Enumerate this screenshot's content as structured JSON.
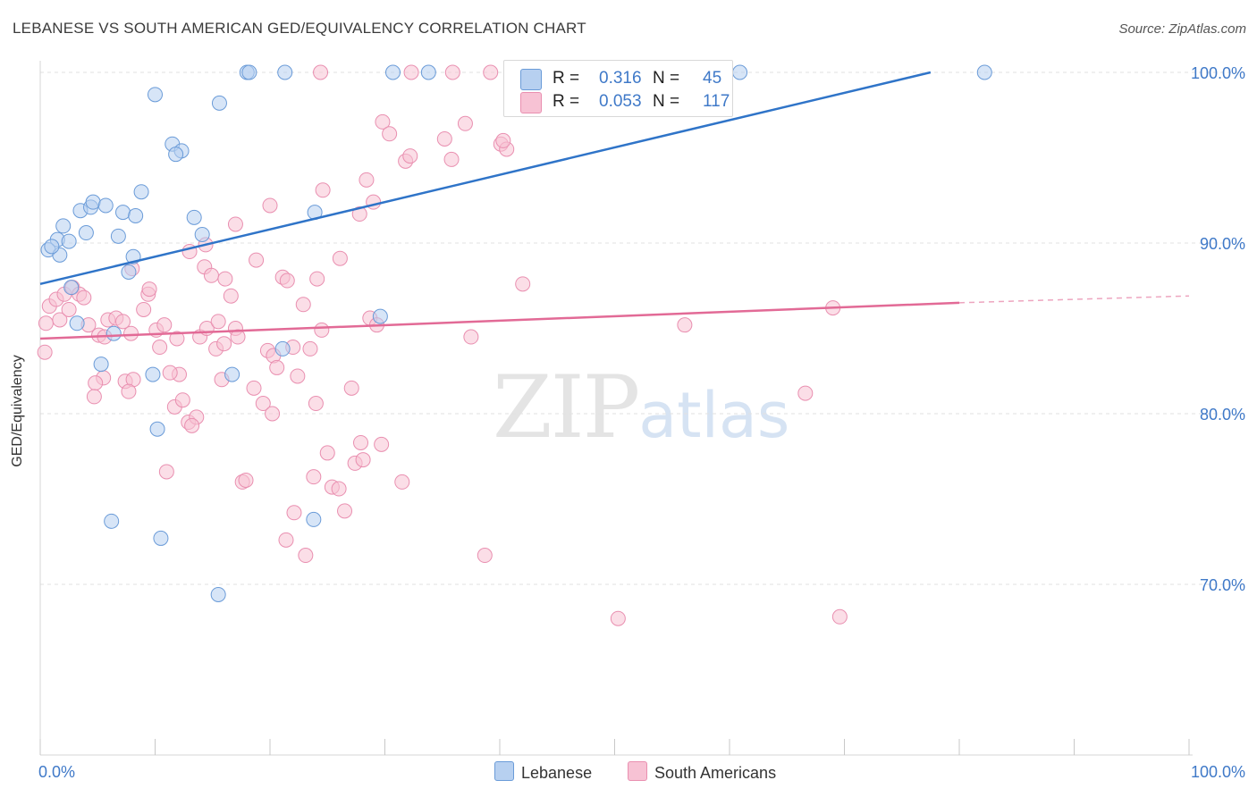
{
  "title": "LEBANESE VS SOUTH AMERICAN GED/EQUIVALENCY CORRELATION CHART",
  "source": "Source: ZipAtlas.com",
  "watermark": {
    "zip": "ZIP",
    "atlas": "atlas"
  },
  "legend_box": {
    "rows": [
      {
        "r_label": "R =",
        "r_value": "0.316",
        "n_label": "N =",
        "n_value": "45",
        "color": "#b7d0f0"
      },
      {
        "r_label": "R =",
        "r_value": "0.053",
        "n_label": "N =",
        "n_value": "117",
        "color": "#f7c2d4"
      }
    ]
  },
  "bottom_legend": {
    "lebanese": "Lebanese",
    "south_americans": "South Americans"
  },
  "colors": {
    "lebanese_fill": "#b7d0f0",
    "lebanese_stroke": "#6a9bd8",
    "lebanese_line": "#2f74c8",
    "south_fill": "#f7c2d4",
    "south_stroke": "#e98fb0",
    "south_line": "#e26a96",
    "axis_text": "#3f79c8"
  },
  "chart_data": {
    "type": "scatter",
    "title": "LEBANESE VS SOUTH AMERICAN GED/EQUIVALENCY CORRELATION CHART",
    "xlabel": "",
    "ylabel": "GED/Equivalency",
    "xlim": [
      0,
      100
    ],
    "ylim": [
      60,
      102
    ],
    "x_tick_labels": [
      "0.0%",
      "100.0%"
    ],
    "y_ticks": [
      70,
      80,
      90,
      100
    ],
    "y_tick_labels": [
      "70.0%",
      "80.0%",
      "90.0%",
      "100.0%"
    ],
    "grid": "horizontal dashed",
    "legend": "top-center",
    "series": [
      {
        "name": "Lebanese",
        "r": 0.316,
        "n": 45,
        "trend": {
          "x": [
            0,
            77.5
          ],
          "y": [
            87.6,
            100.0
          ]
        },
        "points": [
          [
            1.5,
            90.2
          ],
          [
            0.7,
            89.6
          ],
          [
            2.0,
            91.0
          ],
          [
            3.5,
            91.9
          ],
          [
            4.4,
            92.1
          ],
          [
            4.6,
            92.4
          ],
          [
            5.7,
            92.2
          ],
          [
            7.2,
            91.8
          ],
          [
            8.3,
            91.6
          ],
          [
            8.8,
            93.0
          ],
          [
            4.0,
            90.6
          ],
          [
            6.8,
            90.4
          ],
          [
            8.1,
            89.2
          ],
          [
            7.7,
            88.3
          ],
          [
            2.7,
            87.4
          ],
          [
            3.2,
            85.3
          ],
          [
            6.4,
            84.7
          ],
          [
            5.3,
            82.9
          ],
          [
            9.8,
            82.3
          ],
          [
            10.2,
            79.1
          ],
          [
            6.2,
            73.7
          ],
          [
            10.5,
            72.7
          ],
          [
            11.5,
            95.8
          ],
          [
            12.3,
            95.4
          ],
          [
            11.8,
            95.2
          ],
          [
            13.4,
            91.5
          ],
          [
            14.1,
            90.5
          ],
          [
            15.6,
            98.2
          ],
          [
            10.0,
            98.7
          ],
          [
            18.0,
            100.0
          ],
          [
            18.2,
            100.0
          ],
          [
            21.3,
            100.0
          ],
          [
            30.7,
            100.0
          ],
          [
            33.8,
            100.0
          ],
          [
            60.9,
            100.0
          ],
          [
            82.2,
            100.0
          ],
          [
            23.9,
            91.8
          ],
          [
            16.7,
            82.3
          ],
          [
            21.1,
            83.8
          ],
          [
            23.8,
            73.8
          ],
          [
            15.5,
            69.4
          ],
          [
            29.6,
            85.7
          ],
          [
            1.7,
            89.3
          ],
          [
            2.5,
            90.1
          ],
          [
            1.0,
            89.8
          ]
        ]
      },
      {
        "name": "South Americans",
        "r": 0.053,
        "n": 117,
        "trend": {
          "x": [
            0,
            80
          ],
          "y": [
            84.4,
            86.5
          ],
          "dashed_to_x": 100,
          "dashed_to_y": 86.9
        },
        "points": [
          [
            0.4,
            83.6
          ],
          [
            0.5,
            85.3
          ],
          [
            0.8,
            86.3
          ],
          [
            1.4,
            86.7
          ],
          [
            1.7,
            85.5
          ],
          [
            2.1,
            87.0
          ],
          [
            2.5,
            86.1
          ],
          [
            2.8,
            87.4
          ],
          [
            3.4,
            87.0
          ],
          [
            3.8,
            86.8
          ],
          [
            4.2,
            85.2
          ],
          [
            5.1,
            84.6
          ],
          [
            5.6,
            84.5
          ],
          [
            5.5,
            82.1
          ],
          [
            5.9,
            85.5
          ],
          [
            6.6,
            85.6
          ],
          [
            7.2,
            85.4
          ],
          [
            7.9,
            84.7
          ],
          [
            4.8,
            81.8
          ],
          [
            4.7,
            81.0
          ],
          [
            7.4,
            81.9
          ],
          [
            8.1,
            82.0
          ],
          [
            7.7,
            81.3
          ],
          [
            9.0,
            86.1
          ],
          [
            9.4,
            87.0
          ],
          [
            9.5,
            87.3
          ],
          [
            10.1,
            84.9
          ],
          [
            10.4,
            83.9
          ],
          [
            10.8,
            85.2
          ],
          [
            11.9,
            84.4
          ],
          [
            12.1,
            82.3
          ],
          [
            11.3,
            82.4
          ],
          [
            11.7,
            80.4
          ],
          [
            12.4,
            80.8
          ],
          [
            12.9,
            79.5
          ],
          [
            13.6,
            79.8
          ],
          [
            13.2,
            79.3
          ],
          [
            11.0,
            76.6
          ],
          [
            13.9,
            84.5
          ],
          [
            14.5,
            85.0
          ],
          [
            15.5,
            85.4
          ],
          [
            15.3,
            83.8
          ],
          [
            16.0,
            84.1
          ],
          [
            15.8,
            82.0
          ],
          [
            16.6,
            86.9
          ],
          [
            17.0,
            85.0
          ],
          [
            17.2,
            84.5
          ],
          [
            14.3,
            88.6
          ],
          [
            14.9,
            88.1
          ],
          [
            16.1,
            87.9
          ],
          [
            14.4,
            89.9
          ],
          [
            13.0,
            89.5
          ],
          [
            8.0,
            88.5
          ],
          [
            17.6,
            76.0
          ],
          [
            17.9,
            76.1
          ],
          [
            18.6,
            81.5
          ],
          [
            19.4,
            80.6
          ],
          [
            19.8,
            83.7
          ],
          [
            20.3,
            83.4
          ],
          [
            20.6,
            82.7
          ],
          [
            20.2,
            80.0
          ],
          [
            21.1,
            88.0
          ],
          [
            21.5,
            87.8
          ],
          [
            22.0,
            83.9
          ],
          [
            22.4,
            82.2
          ],
          [
            22.9,
            86.4
          ],
          [
            23.5,
            83.8
          ],
          [
            24.0,
            80.6
          ],
          [
            24.5,
            84.9
          ],
          [
            25.0,
            77.7
          ],
          [
            25.4,
            75.7
          ],
          [
            26.0,
            75.6
          ],
          [
            26.5,
            74.3
          ],
          [
            27.1,
            81.5
          ],
          [
            27.4,
            77.1
          ],
          [
            27.9,
            78.3
          ],
          [
            28.1,
            77.3
          ],
          [
            28.7,
            85.6
          ],
          [
            29.3,
            85.2
          ],
          [
            29.7,
            78.2
          ],
          [
            23.8,
            76.3
          ],
          [
            22.1,
            74.2
          ],
          [
            21.4,
            72.6
          ],
          [
            23.1,
            71.7
          ],
          [
            20.0,
            92.2
          ],
          [
            24.1,
            87.9
          ],
          [
            24.6,
            93.1
          ],
          [
            26.1,
            89.1
          ],
          [
            27.8,
            91.7
          ],
          [
            28.4,
            93.7
          ],
          [
            29.0,
            92.4
          ],
          [
            29.8,
            97.1
          ],
          [
            30.4,
            96.4
          ],
          [
            31.8,
            94.8
          ],
          [
            32.2,
            95.1
          ],
          [
            35.2,
            96.1
          ],
          [
            35.8,
            94.9
          ],
          [
            37.0,
            97.0
          ],
          [
            40.1,
            95.8
          ],
          [
            40.6,
            95.5
          ],
          [
            40.3,
            96.0
          ],
          [
            35.9,
            100.0
          ],
          [
            32.3,
            100.0
          ],
          [
            24.4,
            100.0
          ],
          [
            39.2,
            100.0
          ],
          [
            47.9,
            100.0
          ],
          [
            37.5,
            84.5
          ],
          [
            42.0,
            87.6
          ],
          [
            56.1,
            85.2
          ],
          [
            66.6,
            81.2
          ],
          [
            69.0,
            86.2
          ],
          [
            38.7,
            71.7
          ],
          [
            50.3,
            68.0
          ],
          [
            69.6,
            68.1
          ],
          [
            31.5,
            76.0
          ],
          [
            17.0,
            91.1
          ],
          [
            18.8,
            89.0
          ]
        ]
      }
    ]
  }
}
